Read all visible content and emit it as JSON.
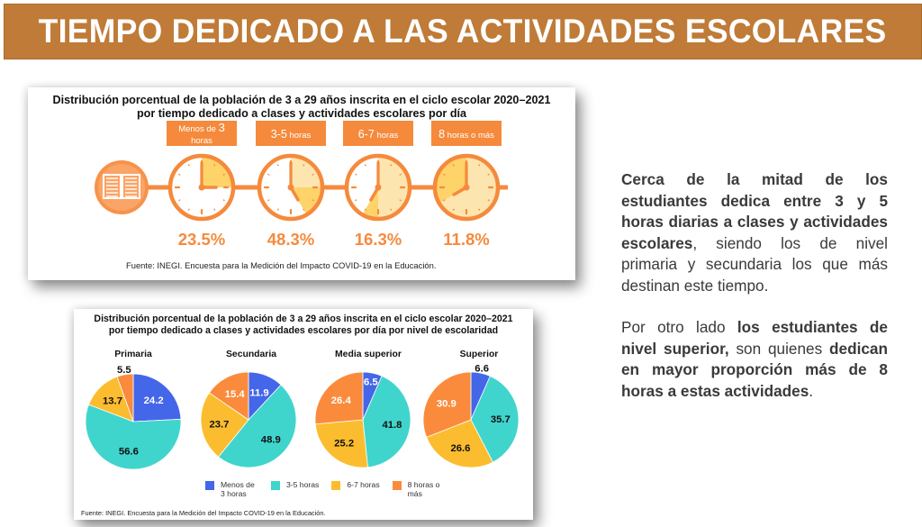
{
  "banner": {
    "title": "TIEMPO DEDICADO A LAS ACTIVIDADES ESCOLARES"
  },
  "colors": {
    "banner": "#bf7b37",
    "orange": "#f58a3c",
    "menos3": "#4466e8",
    "h3_5": "#3fd5cd",
    "h6_7": "#fbbd2f",
    "h8mas": "#fb8b3c",
    "text_dark": "#3a3a3a"
  },
  "infographic": {
    "title_line1": "Distribución porcentual de la población de 3 a 29 años inscrita en el ciclo escolar 2020–2021",
    "title_line2": "por tiempo dedicado a clases y actividades escolares por día",
    "source": "Fuente: INEGI. Encuesta para la Medición del Impacto COVID-19 en la Educación.",
    "book_icon": "open-book-icon",
    "clock_icon": "clock-icon"
  },
  "pies": {
    "title_line1": "Distribución porcentual de la población de 3 a 29 años inscrita en el ciclo escolar 2020–2021",
    "title_line2": "por tiempo dedicado a clases y actividades escolares por día por nivel de escolaridad",
    "source": "Fuente: INEGI. Encuesta para la Medición del Impacto COVID-19 en la Educación.",
    "legend": [
      {
        "label": "Menos de 3 horas",
        "color": "#4466e8"
      },
      {
        "label": "3-5 horas",
        "color": "#3fd5cd"
      },
      {
        "label": "6-7 horas",
        "color": "#fbbd2f"
      },
      {
        "label": "8 horas o más",
        "color": "#fb8b3c"
      }
    ]
  },
  "chart_data": [
    {
      "type": "bar",
      "title": "Distribución porcentual de la población de 3 a 29 años inscrita en el ciclo escolar 2020–2021 por tiempo dedicado a clases y actividades escolares por día",
      "categories": [
        "Menos de 3 horas",
        "3-5 horas",
        "6-7 horas",
        "8 horas o más"
      ],
      "category_display": [
        {
          "main": "Menos de ",
          "big": "3",
          "rest": "horas"
        },
        {
          "big": "3-5",
          "rest": " horas"
        },
        {
          "big": "6-7",
          "rest": " horas"
        },
        {
          "big": "8",
          "rest": " horas o más"
        }
      ],
      "values": [
        23.5,
        48.3,
        16.3,
        11.8
      ],
      "value_labels": [
        "23.5%",
        "48.3%",
        "16.3%",
        "11.8%"
      ],
      "unit": "%",
      "rendering": "clock infographic"
    },
    {
      "type": "pie",
      "title": "Distribución porcentual de la población de 3 a 29 años inscrita en el ciclo escolar 2020–2021 por tiempo dedicado a clases y actividades escolares por día por nivel de escolaridad",
      "categories": [
        "Menos de 3 horas",
        "3-5 horas",
        "6-7 horas",
        "8 horas o más"
      ],
      "groups": [
        {
          "name": "Primaria",
          "values": [
            24.2,
            56.6,
            13.7,
            5.5
          ]
        },
        {
          "name": "Secundaria",
          "values": [
            11.9,
            48.9,
            23.7,
            15.4
          ]
        },
        {
          "name": "Media superior",
          "values": [
            6.5,
            41.8,
            25.2,
            26.4
          ]
        },
        {
          "name": "Superior",
          "values": [
            6.6,
            35.7,
            26.6,
            30.9
          ]
        }
      ],
      "legend": "bottom",
      "source": "Fuente: INEGI. Encuesta para la Medición del Impacto COVID-19 en la Educación."
    }
  ],
  "side": {
    "p1": [
      {
        "t": "Cerca de la mitad de los estudiantes dedica entre 3 y 5 horas diarias a clases y actividades escolares",
        "b": true
      },
      {
        "t": ", siendo los de nivel primaria y secundaria los que más destinan este tiempo.",
        "b": false
      }
    ],
    "p2": [
      {
        "t": "Por otro lado ",
        "b": false
      },
      {
        "t": "los estudiantes de nivel superior,",
        "b": true
      },
      {
        "t": " son quienes ",
        "b": false
      },
      {
        "t": "dedican en mayor proporción más de 8 horas a estas actividades",
        "b": true
      },
      {
        "t": ".",
        "b": false
      }
    ]
  }
}
